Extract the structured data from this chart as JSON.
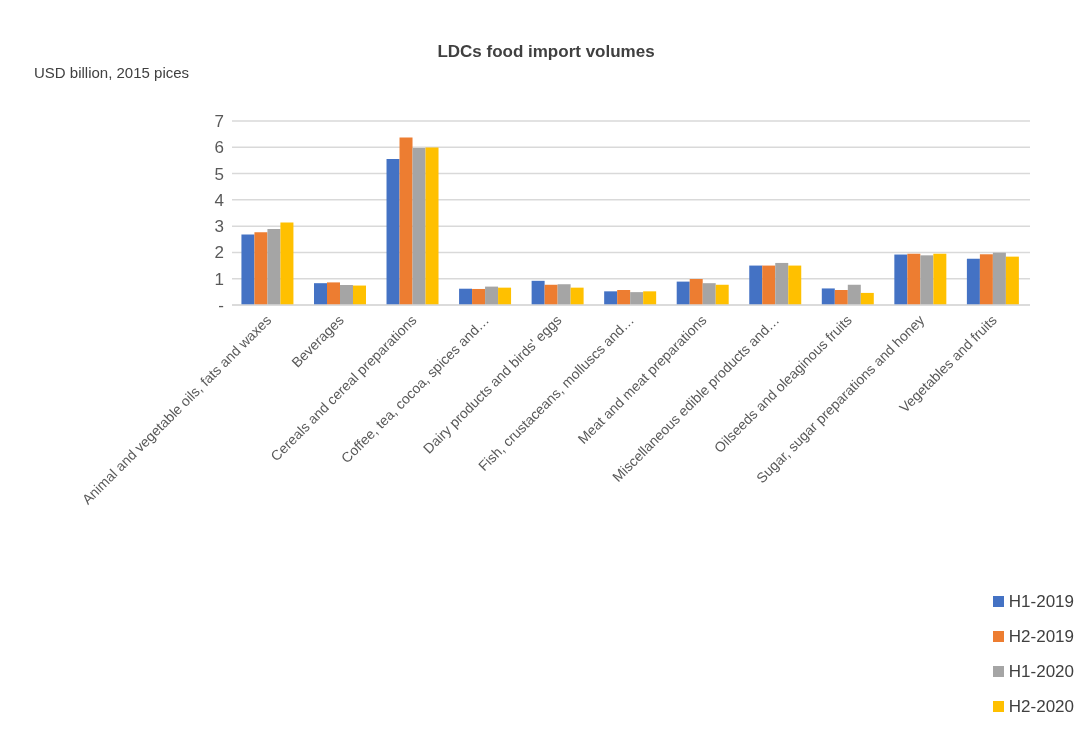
{
  "chart_data": {
    "type": "bar",
    "title": "LDCs food import volumes",
    "ylabel": "USD billion, 2015 pices",
    "categories": [
      "Animal and vegetable oils, fats and waxes",
      "Beverages",
      "Cereals and cereal preparations",
      "Coffee, tea, cocoa, spices and…",
      "Dairy products and birds' eggs",
      "Fish, crustaceans, molluscs and…",
      "Meat and meat preparations",
      "Miscellaneous edible products and…",
      "Oilseeds and oleaginous fruits",
      "Sugar, sugar preparations and honey",
      "Vegetables and fruits"
    ],
    "series": [
      {
        "name": "H1-2019",
        "color": "#4472c4",
        "values": [
          2.68,
          0.83,
          5.55,
          0.62,
          0.92,
          0.52,
          0.89,
          1.5,
          0.63,
          1.92,
          1.76
        ]
      },
      {
        "name": "H2-2019",
        "color": "#ed7d31",
        "values": [
          2.77,
          0.86,
          6.37,
          0.61,
          0.77,
          0.57,
          0.99,
          1.5,
          0.57,
          1.95,
          1.93
        ]
      },
      {
        "name": "H1-2020",
        "color": "#a5a5a5",
        "values": [
          2.89,
          0.76,
          5.97,
          0.7,
          0.79,
          0.49,
          0.83,
          1.6,
          0.77,
          1.89,
          1.99
        ]
      },
      {
        "name": "H2-2020",
        "color": "#ffc000",
        "values": [
          3.14,
          0.74,
          5.99,
          0.66,
          0.66,
          0.52,
          0.77,
          1.5,
          0.46,
          1.95,
          1.84
        ]
      }
    ],
    "ylim": [
      0,
      7
    ],
    "yticks": [
      {
        "value": 0,
        "label": "-"
      },
      1,
      2,
      3,
      4,
      5,
      6,
      7
    ],
    "grid": "y",
    "legend": "bottom right"
  }
}
